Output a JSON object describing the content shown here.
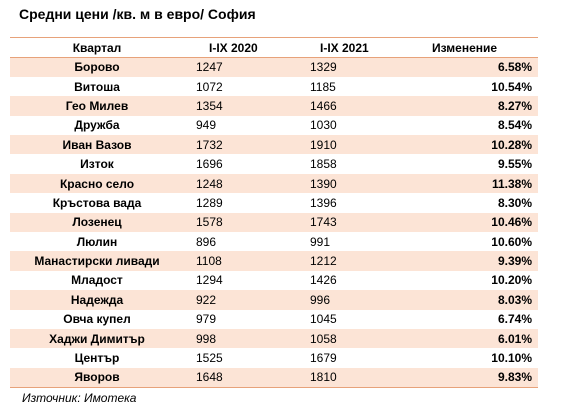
{
  "title": "Средни цени /кв. м в евро/ София",
  "table": {
    "headers": [
      "Квартал",
      "I-IX 2020",
      "I-IX 2021",
      "Изменение"
    ],
    "rows": [
      [
        "Борово",
        "1247",
        "1329",
        "6.58%"
      ],
      [
        "Витоша",
        "1072",
        "1185",
        "10.54%"
      ],
      [
        "Гео Милев",
        "1354",
        "1466",
        "8.27%"
      ],
      [
        "Дружба",
        "949",
        "1030",
        "8.54%"
      ],
      [
        "Иван Вазов",
        "1732",
        "1910",
        "10.28%"
      ],
      [
        "Изток",
        "1696",
        "1858",
        "9.55%"
      ],
      [
        "Красно село",
        "1248",
        "1390",
        "11.38%"
      ],
      [
        "Кръстова вада",
        "1289",
        "1396",
        "8.30%"
      ],
      [
        "Лозенец",
        "1578",
        "1743",
        "10.46%"
      ],
      [
        "Люлин",
        "896",
        "991",
        "10.60%"
      ],
      [
        "Манастирски ливади",
        "1108",
        "1212",
        "9.39%"
      ],
      [
        "Младост",
        "1294",
        "1426",
        "10.20%"
      ],
      [
        "Надежда",
        "922",
        "996",
        "8.03%"
      ],
      [
        "Овча купел",
        "979",
        "1045",
        "6.74%"
      ],
      [
        "Хаджи Димитър",
        "998",
        "1058",
        "6.01%"
      ],
      [
        "Център",
        "1525",
        "1679",
        "10.10%"
      ],
      [
        "Яворов",
        "1648",
        "1810",
        "9.83%"
      ]
    ]
  },
  "source": "Източник: Имотека",
  "colors": {
    "band": "#fce4d6",
    "rule": "#e7a27a"
  }
}
